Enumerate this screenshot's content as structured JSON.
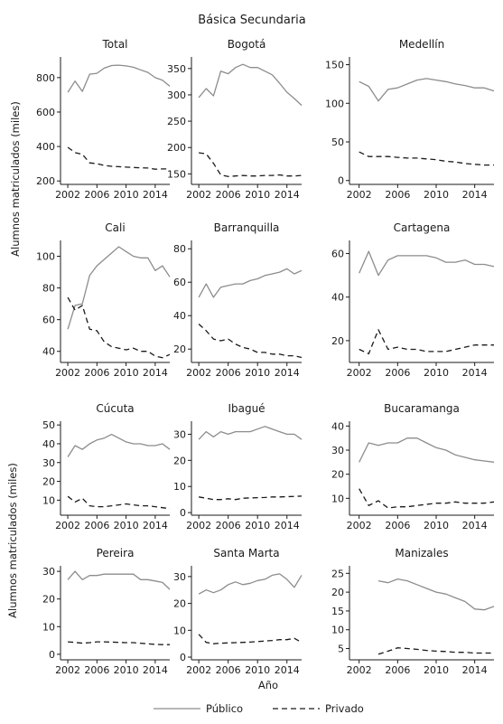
{
  "figure": {
    "title": "Básica Secundaria",
    "ylabel": "Alumnos matriculados (miles)",
    "xlabel": "Año",
    "legend": {
      "publico": "Público",
      "privado": "Privado",
      "placement": "bottom"
    },
    "colors": {
      "publico": "#8c8c8c",
      "privado": "#1a1a1a"
    }
  },
  "chart_data": [
    {
      "type": "line",
      "title": "Total",
      "xlim": [
        2001,
        2016
      ],
      "ylim": [
        180,
        920
      ],
      "yticks": [
        200,
        400,
        600,
        800
      ],
      "xticks": [
        2002,
        2006,
        2010,
        2014
      ],
      "series": [
        {
          "name": "Público",
          "x": [
            2002,
            2003,
            2004,
            2005,
            2006,
            2007,
            2008,
            2009,
            2010,
            2011,
            2012,
            2013,
            2014,
            2015,
            2016
          ],
          "y": [
            715,
            780,
            720,
            820,
            825,
            855,
            870,
            872,
            868,
            860,
            845,
            830,
            800,
            785,
            750
          ]
        },
        {
          "name": "Privado",
          "x": [
            2002,
            2003,
            2004,
            2005,
            2006,
            2007,
            2008,
            2009,
            2010,
            2011,
            2012,
            2013,
            2014,
            2015,
            2016
          ],
          "y": [
            395,
            365,
            355,
            305,
            300,
            290,
            285,
            283,
            280,
            278,
            276,
            275,
            268,
            270,
            270
          ]
        }
      ]
    },
    {
      "type": "line",
      "title": "Bogotá",
      "xlim": [
        2001,
        2016
      ],
      "ylim": [
        130,
        372
      ],
      "yticks": [
        150,
        200,
        250,
        300,
        350
      ],
      "xticks": [
        2002,
        2006,
        2010,
        2014
      ],
      "series": [
        {
          "name": "Público",
          "x": [
            2002,
            2003,
            2004,
            2005,
            2006,
            2007,
            2008,
            2009,
            2010,
            2011,
            2012,
            2013,
            2014,
            2015,
            2016
          ],
          "y": [
            295,
            312,
            298,
            345,
            340,
            352,
            358,
            352,
            352,
            345,
            338,
            322,
            305,
            293,
            280
          ]
        },
        {
          "name": "Privado",
          "x": [
            2002,
            2003,
            2004,
            2005,
            2006,
            2007,
            2008,
            2009,
            2010,
            2011,
            2012,
            2013,
            2014,
            2015,
            2016
          ],
          "y": [
            190,
            188,
            170,
            148,
            145,
            146,
            147,
            146,
            146,
            147,
            147,
            148,
            146,
            146,
            147
          ]
        }
      ]
    },
    {
      "type": "line",
      "title": "Medellín",
      "xlim": [
        2001,
        2016
      ],
      "ylim": [
        -5,
        160
      ],
      "yticks": [
        0,
        50,
        100,
        150
      ],
      "xticks": [
        2002,
        2006,
        2010,
        2014
      ],
      "series": [
        {
          "name": "Público",
          "x": [
            2002,
            2003,
            2004,
            2005,
            2006,
            2007,
            2008,
            2009,
            2010,
            2011,
            2012,
            2013,
            2014,
            2015,
            2016
          ],
          "y": [
            128,
            122,
            103,
            118,
            120,
            125,
            130,
            132,
            130,
            128,
            125,
            123,
            120,
            120,
            116
          ]
        },
        {
          "name": "Privado",
          "x": [
            2002,
            2003,
            2004,
            2005,
            2006,
            2007,
            2008,
            2009,
            2010,
            2011,
            2012,
            2013,
            2014,
            2015,
            2016
          ],
          "y": [
            37,
            31,
            31,
            31,
            30,
            29,
            29,
            28,
            27,
            25,
            24,
            22,
            21,
            20,
            20
          ]
        }
      ]
    },
    {
      "type": "line",
      "title": "Cali",
      "xlim": [
        2001,
        2016
      ],
      "ylim": [
        33,
        110
      ],
      "yticks": [
        40,
        60,
        80,
        100
      ],
      "xticks": [
        2002,
        2006,
        2010,
        2014
      ],
      "series": [
        {
          "name": "Público",
          "x": [
            2002,
            2003,
            2004,
            2005,
            2006,
            2007,
            2008,
            2009,
            2010,
            2011,
            2012,
            2013,
            2014,
            2015,
            2016
          ],
          "y": [
            54,
            69,
            70,
            88,
            94,
            98,
            102,
            106,
            103,
            100,
            99,
            99,
            91,
            94,
            87
          ]
        },
        {
          "name": "Privado",
          "x": [
            2002,
            2003,
            2004,
            2005,
            2006,
            2007,
            2008,
            2009,
            2010,
            2011,
            2012,
            2013,
            2014,
            2015,
            2016
          ],
          "y": [
            74,
            66,
            69,
            54,
            53,
            46,
            43,
            42,
            41,
            42,
            40,
            40,
            37,
            36,
            38
          ]
        }
      ]
    },
    {
      "type": "line",
      "title": "Barranquilla",
      "xlim": [
        2001,
        2016
      ],
      "ylim": [
        12,
        85
      ],
      "yticks": [
        20,
        40,
        60,
        80
      ],
      "xticks": [
        2002,
        2006,
        2010,
        2014
      ],
      "series": [
        {
          "name": "Público",
          "x": [
            2002,
            2003,
            2004,
            2005,
            2006,
            2007,
            2008,
            2009,
            2010,
            2011,
            2012,
            2013,
            2014,
            2015,
            2016
          ],
          "y": [
            51,
            59,
            51,
            57,
            58,
            59,
            59,
            61,
            62,
            64,
            65,
            66,
            68,
            65,
            67
          ]
        },
        {
          "name": "Privado",
          "x": [
            2002,
            2003,
            2004,
            2005,
            2006,
            2007,
            2008,
            2009,
            2010,
            2011,
            2012,
            2013,
            2014,
            2015,
            2016
          ],
          "y": [
            35,
            31,
            26,
            25,
            26,
            23,
            21,
            20,
            18,
            18,
            17,
            17,
            16,
            16,
            15
          ]
        }
      ]
    },
    {
      "type": "line",
      "title": "Cartagena",
      "xlim": [
        2001,
        2016
      ],
      "ylim": [
        10,
        66
      ],
      "yticks": [
        20,
        40,
        60
      ],
      "xticks": [
        2002,
        2006,
        2010,
        2014
      ],
      "series": [
        {
          "name": "Público",
          "x": [
            2002,
            2003,
            2004,
            2005,
            2006,
            2007,
            2008,
            2009,
            2010,
            2011,
            2012,
            2013,
            2014,
            2015,
            2016
          ],
          "y": [
            51,
            61,
            50,
            57,
            59,
            59,
            59,
            59,
            58,
            56,
            56,
            57,
            55,
            55,
            54
          ]
        },
        {
          "name": "Privado",
          "x": [
            2002,
            2003,
            2004,
            2005,
            2006,
            2007,
            2008,
            2009,
            2010,
            2011,
            2012,
            2013,
            2014,
            2015,
            2016
          ],
          "y": [
            16,
            14,
            25,
            16,
            17,
            16,
            16,
            15,
            15,
            15,
            16,
            17,
            18,
            18,
            18
          ]
        }
      ]
    },
    {
      "type": "line",
      "title": "Cúcuta",
      "xlim": [
        2001,
        2016
      ],
      "ylim": [
        2,
        52
      ],
      "yticks": [
        10,
        20,
        30,
        40,
        50
      ],
      "xticks": [
        2002,
        2006,
        2010,
        2014
      ],
      "series": [
        {
          "name": "Público",
          "x": [
            2002,
            2003,
            2004,
            2005,
            2006,
            2007,
            2008,
            2009,
            2010,
            2011,
            2012,
            2013,
            2014,
            2015,
            2016
          ],
          "y": [
            33,
            39,
            37,
            40,
            42,
            43,
            45,
            43,
            41,
            40,
            40,
            39,
            39,
            40,
            37
          ]
        },
        {
          "name": "Privado",
          "x": [
            2002,
            2003,
            2004,
            2005,
            2006,
            2007,
            2008,
            2009,
            2010,
            2011,
            2012,
            2013,
            2014,
            2015,
            2016
          ],
          "y": [
            12,
            9,
            11,
            7,
            6.5,
            6.5,
            7,
            7.5,
            8,
            7.5,
            7,
            7,
            6.5,
            6,
            5.5
          ]
        }
      ]
    },
    {
      "type": "line",
      "title": "Ibagué",
      "xlim": [
        2001,
        2016
      ],
      "ylim": [
        -1,
        35
      ],
      "yticks": [
        0,
        10,
        20,
        30
      ],
      "xticks": [
        2002,
        2006,
        2010,
        2014
      ],
      "series": [
        {
          "name": "Público",
          "x": [
            2002,
            2003,
            2004,
            2005,
            2006,
            2007,
            2008,
            2009,
            2010,
            2011,
            2012,
            2013,
            2014,
            2015,
            2016
          ],
          "y": [
            28,
            31,
            29,
            31,
            30,
            31,
            31,
            31,
            32,
            33,
            32,
            31,
            30,
            30,
            28
          ]
        },
        {
          "name": "Privado",
          "x": [
            2002,
            2003,
            2004,
            2005,
            2006,
            2007,
            2008,
            2009,
            2010,
            2011,
            2012,
            2013,
            2014,
            2015,
            2016
          ],
          "y": [
            6,
            5.5,
            5,
            5,
            5.3,
            5,
            5.5,
            5.6,
            5.7,
            5.8,
            6,
            6,
            6.1,
            6.2,
            6.3
          ]
        }
      ]
    },
    {
      "type": "line",
      "title": "Bucaramanga",
      "xlim": [
        2001,
        2016
      ],
      "ylim": [
        3,
        42
      ],
      "yticks": [
        10,
        20,
        30,
        40
      ],
      "xticks": [
        2002,
        2006,
        2010,
        2014
      ],
      "series": [
        {
          "name": "Público",
          "x": [
            2002,
            2003,
            2004,
            2005,
            2006,
            2007,
            2008,
            2009,
            2010,
            2011,
            2012,
            2013,
            2014,
            2015,
            2016
          ],
          "y": [
            25,
            33,
            32,
            33,
            33,
            35,
            35,
            33,
            31,
            30,
            28,
            27,
            26,
            25.5,
            25
          ]
        },
        {
          "name": "Privado",
          "x": [
            2002,
            2003,
            2004,
            2005,
            2006,
            2007,
            2008,
            2009,
            2010,
            2011,
            2012,
            2013,
            2014,
            2015,
            2016
          ],
          "y": [
            14,
            7,
            9,
            6,
            6.5,
            6.5,
            7,
            7.5,
            8,
            8,
            8.5,
            8,
            8,
            8,
            8.5
          ]
        }
      ]
    },
    {
      "type": "line",
      "title": "Pereira",
      "xlim": [
        2001,
        2016
      ],
      "ylim": [
        -2,
        32
      ],
      "yticks": [
        0,
        10,
        20,
        30
      ],
      "xticks": [
        2002,
        2006,
        2010,
        2014
      ],
      "series": [
        {
          "name": "Público",
          "x": [
            2002,
            2003,
            2004,
            2005,
            2006,
            2007,
            2008,
            2009,
            2010,
            2011,
            2012,
            2013,
            2014,
            2015,
            2016
          ],
          "y": [
            27,
            30,
            27,
            28.5,
            28.5,
            29,
            29,
            29,
            29,
            29,
            27,
            27,
            26.5,
            26,
            23.5
          ]
        },
        {
          "name": "Privado",
          "x": [
            2002,
            2003,
            2004,
            2005,
            2006,
            2007,
            2008,
            2009,
            2010,
            2011,
            2012,
            2013,
            2014,
            2015,
            2016
          ],
          "y": [
            4.5,
            4.3,
            4,
            4.2,
            4.5,
            4.5,
            4.4,
            4.3,
            4.2,
            4.2,
            4,
            3.8,
            3.6,
            3.5,
            3.5
          ]
        }
      ]
    },
    {
      "type": "line",
      "title": "Santa Marta",
      "xlim": [
        2001,
        2016
      ],
      "ylim": [
        -1,
        34
      ],
      "yticks": [
        0,
        10,
        20,
        30
      ],
      "xticks": [
        2002,
        2006,
        2010,
        2014
      ],
      "series": [
        {
          "name": "Público",
          "x": [
            2002,
            2003,
            2004,
            2005,
            2006,
            2007,
            2008,
            2009,
            2010,
            2011,
            2012,
            2013,
            2014,
            2015,
            2016
          ],
          "y": [
            23.5,
            25,
            24,
            25,
            27,
            28,
            27,
            27.5,
            28.5,
            29,
            30.5,
            31,
            29,
            26,
            30.5
          ]
        },
        {
          "name": "Privado",
          "x": [
            2002,
            2003,
            2004,
            2005,
            2006,
            2007,
            2008,
            2009,
            2010,
            2011,
            2012,
            2013,
            2014,
            2015,
            2016
          ],
          "y": [
            8.5,
            5.5,
            5,
            5.2,
            5.3,
            5.4,
            5.5,
            5.6,
            5.8,
            6,
            6.2,
            6.5,
            6.5,
            7,
            5.5
          ]
        }
      ]
    },
    {
      "type": "line",
      "title": "Manizales",
      "xlim": [
        2001,
        2016
      ],
      "ylim": [
        2,
        27
      ],
      "yticks": [
        5,
        10,
        15,
        20,
        25
      ],
      "xticks": [
        2002,
        2006,
        2010,
        2014
      ],
      "series": [
        {
          "name": "Público",
          "x": [
            2004,
            2005,
            2006,
            2007,
            2008,
            2009,
            2010,
            2011,
            2012,
            2013,
            2014,
            2015,
            2016
          ],
          "y": [
            23,
            22.5,
            23.5,
            23,
            22,
            21,
            20,
            19.5,
            18.5,
            17.5,
            15.5,
            15.3,
            16.2
          ]
        },
        {
          "name": "Privado",
          "x": [
            2004,
            2005,
            2006,
            2007,
            2008,
            2009,
            2010,
            2011,
            2012,
            2013,
            2014,
            2015,
            2016
          ],
          "y": [
            3.5,
            4.3,
            5.2,
            5,
            4.8,
            4.5,
            4.3,
            4.2,
            4,
            4,
            3.8,
            3.8,
            3.8
          ]
        }
      ]
    }
  ]
}
